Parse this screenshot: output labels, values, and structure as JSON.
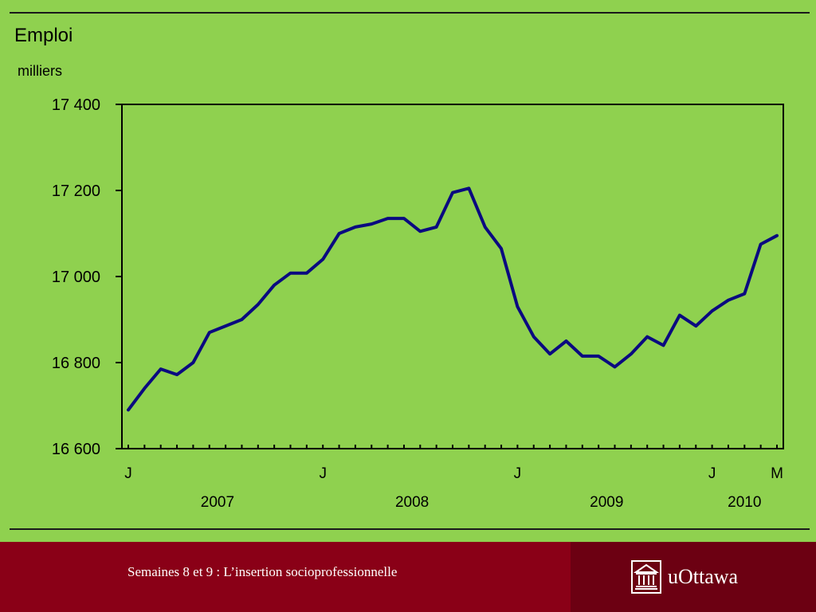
{
  "chart_data": {
    "type": "line",
    "title": "Emploi",
    "ylabel": "milliers",
    "ylim": [
      16600,
      17400
    ],
    "yticks": [
      {
        "value": 17400,
        "label": "17 400"
      },
      {
        "value": 17200,
        "label": "17 200"
      },
      {
        "value": 17000,
        "label": "17 000"
      },
      {
        "value": 16800,
        "label": "16 800"
      },
      {
        "value": 16600,
        "label": "16 600"
      }
    ],
    "month_count": 41,
    "month_labels": [
      {
        "index": 0,
        "label": "J"
      },
      {
        "index": 12,
        "label": "J"
      },
      {
        "index": 24,
        "label": "J"
      },
      {
        "index": 36,
        "label": "J"
      },
      {
        "index": 40,
        "label": "M"
      }
    ],
    "year_labels": [
      {
        "index": 5.5,
        "label": "2007"
      },
      {
        "index": 17.5,
        "label": "2008"
      },
      {
        "index": 29.5,
        "label": "2009"
      },
      {
        "index": 38,
        "label": "2010"
      }
    ],
    "series": [
      {
        "color": "#0a0a80",
        "values": [
          16690,
          16740,
          16785,
          16772,
          16800,
          16870,
          16885,
          16900,
          16935,
          16980,
          17008,
          17008,
          17040,
          17100,
          17115,
          17122,
          17135,
          17135,
          17105,
          17115,
          17195,
          17205,
          17115,
          17065,
          16930,
          16860,
          16820,
          16850,
          16815,
          16815,
          16790,
          16820,
          16860,
          16840,
          16910,
          16885,
          16920,
          16945,
          16960,
          17075,
          17095
        ]
      }
    ]
  },
  "footer": {
    "caption": "Semaines 8 et 9 : L’insertion socioprofessionnelle",
    "logo_text": "uOttawa"
  }
}
